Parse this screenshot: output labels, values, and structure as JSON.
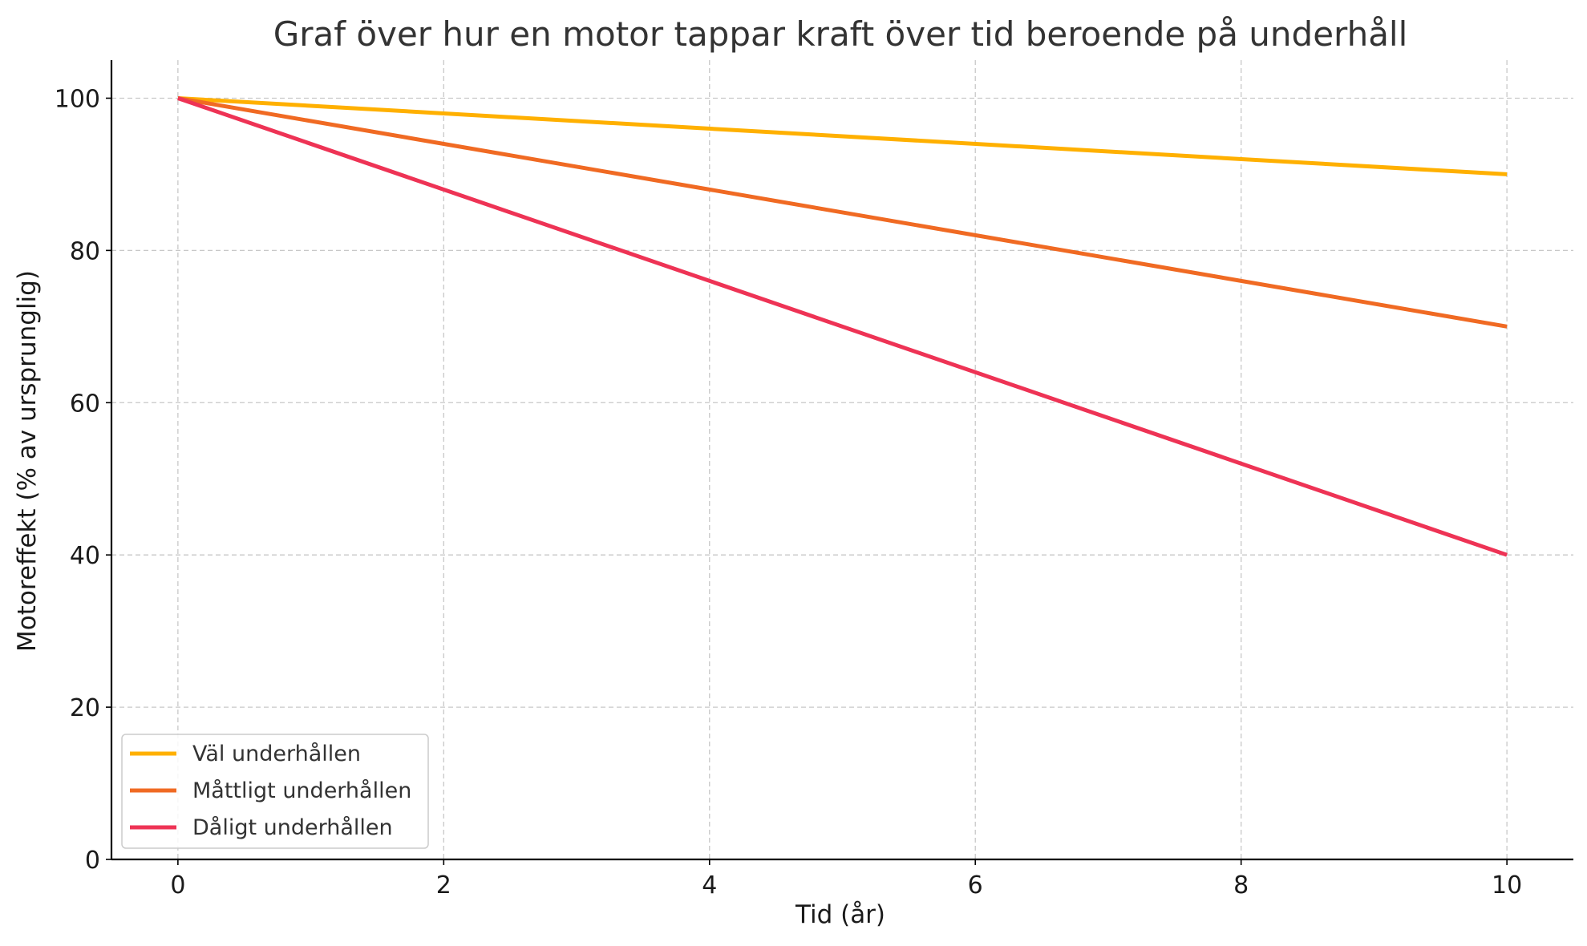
{
  "chart_data": {
    "type": "line",
    "title": "Graf över hur en motor tappar kraft över tid beroende på underhåll",
    "xlabel": "Tid (år)",
    "ylabel": "Motoreffekt (% av ursprunglig)",
    "x": [
      0,
      10
    ],
    "xlim": [
      -0.5,
      10.5
    ],
    "ylim": [
      0,
      105
    ],
    "xticks": [
      0,
      2,
      4,
      6,
      8,
      10
    ],
    "yticks": [
      0,
      20,
      40,
      60,
      80,
      100
    ],
    "grid": true,
    "legend_position": "lower-left",
    "series": [
      {
        "name": "Väl underhållen",
        "values": [
          100,
          90
        ],
        "color": "#FFB000"
      },
      {
        "name": "Måttligt underhållen",
        "values": [
          100,
          70
        ],
        "color": "#F06A23"
      },
      {
        "name": "Dåligt underhållen",
        "values": [
          100,
          40
        ],
        "color": "#EE3355"
      }
    ]
  }
}
